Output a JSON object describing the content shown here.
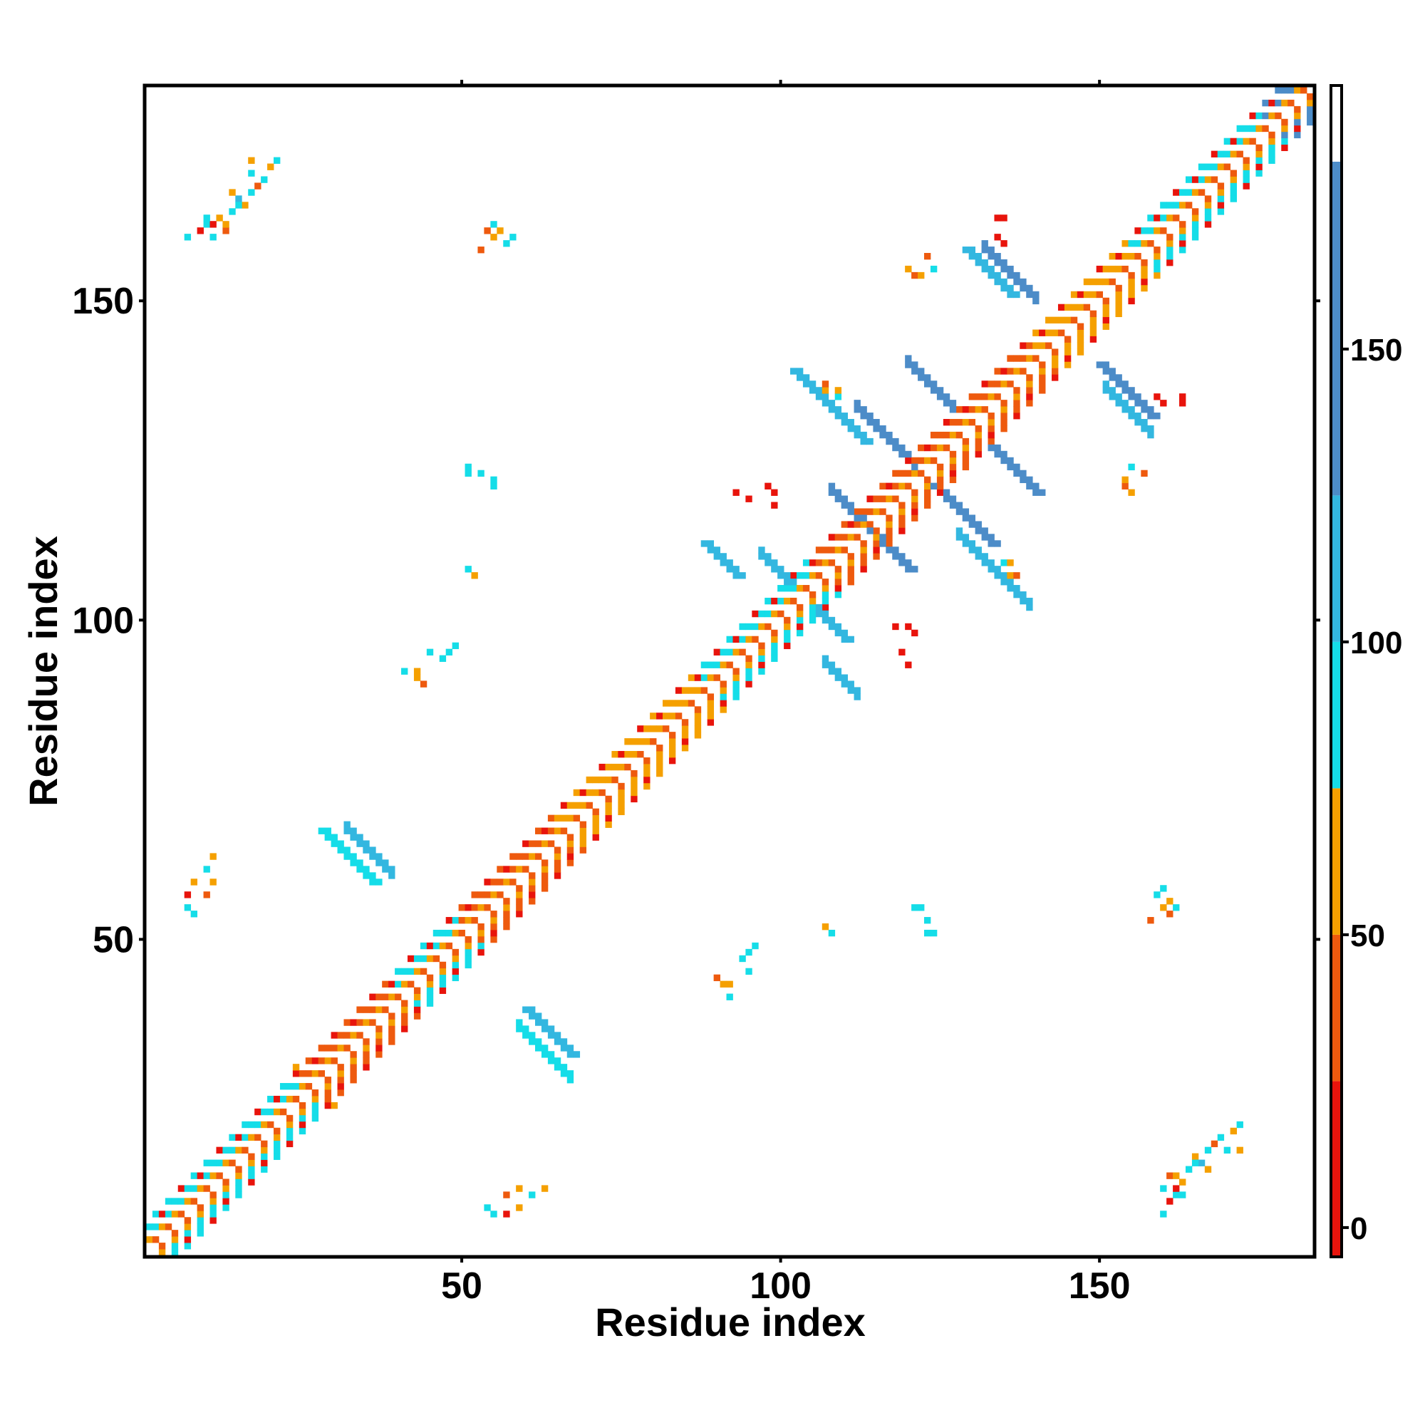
{
  "chart_data": {
    "type": "heatmap",
    "title": "",
    "xlabel": "Residue index",
    "ylabel": "Residue index",
    "xlim": [
      1,
      183
    ],
    "ylim": [
      1,
      183
    ],
    "xticks": [
      50,
      100,
      150
    ],
    "yticks": [
      50,
      100,
      150
    ],
    "grid": false,
    "legend": "colorbar-right",
    "colorbar": {
      "ticks": [
        0,
        50,
        100,
        150
      ],
      "range": [
        -5,
        195
      ],
      "segments": [
        {
          "from": -5,
          "to": 25,
          "color": "#e8140c"
        },
        {
          "from": 25,
          "to": 50,
          "color": "#ee5a0e"
        },
        {
          "from": 50,
          "to": 75,
          "color": "#f5a000"
        },
        {
          "from": 75,
          "to": 100,
          "color": "#15dde8"
        },
        {
          "from": 100,
          "to": 125,
          "color": "#33b7e0"
        },
        {
          "from": 125,
          "to": 182,
          "color": "#4c8cc8"
        },
        {
          "from": 182,
          "to": 195,
          "color": "#ffffff"
        }
      ]
    },
    "palette": [
      "#e8140c",
      "#ee5a0e",
      "#f5a000",
      "#15dde8",
      "#33b7e0",
      "#4c8cc8"
    ],
    "symmetric": true,
    "diagonal_ranges": [
      {
        "from": 1,
        "to": 25,
        "value": 90
      },
      {
        "from": 25,
        "to": 40,
        "value": 40
      },
      {
        "from": 40,
        "to": 50,
        "value": 95
      },
      {
        "from": 50,
        "to": 65,
        "value": 45
      },
      {
        "from": 65,
        "to": 87,
        "value": 55
      },
      {
        "from": 87,
        "to": 105,
        "value": 85
      },
      {
        "from": 105,
        "to": 140,
        "value": 40
      },
      {
        "from": 140,
        "to": 155,
        "value": 70
      },
      {
        "from": 155,
        "to": 176,
        "value": 90
      },
      {
        "from": 176,
        "to": 183,
        "value": 150
      }
    ],
    "antiparallel_bands": [
      {
        "i": 32,
        "j": 67,
        "length": 8,
        "width": 2,
        "value": 110
      },
      {
        "i": 59,
        "j": 36,
        "length": 9,
        "width": 2,
        "value": 95
      },
      {
        "i": 97,
        "j": 110,
        "length": 6,
        "width": 2,
        "value": 105
      },
      {
        "i": 108,
        "j": 120,
        "length": 8,
        "width": 2,
        "value": 130
      },
      {
        "i": 112,
        "j": 133,
        "length": 10,
        "width": 2,
        "value": 130
      },
      {
        "i": 120,
        "j": 140,
        "length": 8,
        "width": 2,
        "value": 130
      },
      {
        "i": 128,
        "j": 113,
        "length": 12,
        "width": 2,
        "value": 120
      },
      {
        "i": 133,
        "j": 157,
        "length": 8,
        "width": 2,
        "value": 125
      },
      {
        "i": 151,
        "j": 136,
        "length": 8,
        "width": 2,
        "value": 120
      },
      {
        "i": 132,
        "j": 158,
        "length": 6,
        "width": 2,
        "value": 130
      },
      {
        "i": 107,
        "j": 93,
        "length": 6,
        "width": 2,
        "value": 110
      }
    ],
    "sparse_contacts": [
      {
        "x": 10,
        "y": 162,
        "value": 90
      },
      {
        "x": 11,
        "y": 162,
        "value": 20
      },
      {
        "x": 12,
        "y": 163,
        "value": 60
      },
      {
        "x": 13,
        "y": 161,
        "value": 45
      },
      {
        "x": 14,
        "y": 164,
        "value": 90
      },
      {
        "x": 15,
        "y": 166,
        "value": 110
      },
      {
        "x": 16,
        "y": 165,
        "value": 60
      },
      {
        "x": 17,
        "y": 167,
        "value": 90
      },
      {
        "x": 18,
        "y": 168,
        "value": 45
      },
      {
        "x": 19,
        "y": 169,
        "value": 90
      },
      {
        "x": 20,
        "y": 171,
        "value": 60
      },
      {
        "x": 21,
        "y": 172,
        "value": 90
      },
      {
        "x": 54,
        "y": 161,
        "value": 40
      },
      {
        "x": 55,
        "y": 162,
        "value": 90
      },
      {
        "x": 56,
        "y": 161,
        "value": 60
      },
      {
        "x": 58,
        "y": 160,
        "value": 90
      },
      {
        "x": 51,
        "y": 124,
        "value": 90
      },
      {
        "x": 53,
        "y": 123,
        "value": 90
      },
      {
        "x": 55,
        "y": 121,
        "value": 90
      },
      {
        "x": 51,
        "y": 108,
        "value": 90
      },
      {
        "x": 52,
        "y": 107,
        "value": 60
      },
      {
        "x": 41,
        "y": 92,
        "value": 95
      },
      {
        "x": 43,
        "y": 91,
        "value": 60
      },
      {
        "x": 45,
        "y": 95,
        "value": 90
      },
      {
        "x": 48,
        "y": 95,
        "value": 90
      },
      {
        "x": 8,
        "y": 59,
        "value": 60
      },
      {
        "x": 10,
        "y": 61,
        "value": 90
      },
      {
        "x": 11,
        "y": 63,
        "value": 60
      },
      {
        "x": 7,
        "y": 55,
        "value": 90
      },
      {
        "x": 30,
        "y": 24,
        "value": 60
      },
      {
        "x": 57,
        "y": 10,
        "value": 40
      },
      {
        "x": 59,
        "y": 11,
        "value": 60
      },
      {
        "x": 54,
        "y": 8,
        "value": 90
      },
      {
        "x": 57,
        "y": 7,
        "value": 20
      },
      {
        "x": 90,
        "y": 44,
        "value": 40
      },
      {
        "x": 92,
        "y": 43,
        "value": 60
      },
      {
        "x": 94,
        "y": 47,
        "value": 90
      },
      {
        "x": 96,
        "y": 49,
        "value": 90
      },
      {
        "x": 107,
        "y": 52,
        "value": 60
      },
      {
        "x": 108,
        "y": 51,
        "value": 90
      },
      {
        "x": 122,
        "y": 55,
        "value": 90
      },
      {
        "x": 123,
        "y": 51,
        "value": 90
      },
      {
        "x": 159,
        "y": 57,
        "value": 90
      },
      {
        "x": 160,
        "y": 55,
        "value": 60
      },
      {
        "x": 161,
        "y": 54,
        "value": 20
      },
      {
        "x": 158,
        "y": 53,
        "value": 40
      },
      {
        "x": 160,
        "y": 11,
        "value": 90
      },
      {
        "x": 162,
        "y": 13,
        "value": 60
      },
      {
        "x": 165,
        "y": 15,
        "value": 90
      },
      {
        "x": 167,
        "y": 14,
        "value": 60
      },
      {
        "x": 170,
        "y": 17,
        "value": 90
      },
      {
        "x": 172,
        "y": 17,
        "value": 60
      },
      {
        "x": 161,
        "y": 9,
        "value": 20
      },
      {
        "x": 163,
        "y": 10,
        "value": 90
      },
      {
        "x": 160,
        "y": 7,
        "value": 90
      },
      {
        "x": 134,
        "y": 163,
        "value": 20
      },
      {
        "x": 135,
        "y": 163,
        "value": 20
      },
      {
        "x": 120,
        "y": 155,
        "value": 60
      },
      {
        "x": 121,
        "y": 154,
        "value": 40
      },
      {
        "x": 107,
        "y": 136,
        "value": 60
      },
      {
        "x": 109,
        "y": 135,
        "value": 90
      },
      {
        "x": 98,
        "y": 121,
        "value": 20
      },
      {
        "x": 93,
        "y": 120,
        "value": 20
      },
      {
        "x": 120,
        "y": 99,
        "value": 20
      },
      {
        "x": 118,
        "y": 99,
        "value": 20
      },
      {
        "x": 119,
        "y": 95,
        "value": 20
      },
      {
        "x": 136,
        "y": 109,
        "value": 60
      },
      {
        "x": 137,
        "y": 107,
        "value": 40
      },
      {
        "x": 159,
        "y": 135,
        "value": 20
      },
      {
        "x": 160,
        "y": 134,
        "value": 20
      },
      {
        "x": 155,
        "y": 124,
        "value": 90
      },
      {
        "x": 154,
        "y": 122,
        "value": 60
      },
      {
        "x": 157,
        "y": 123,
        "value": 40
      }
    ]
  }
}
